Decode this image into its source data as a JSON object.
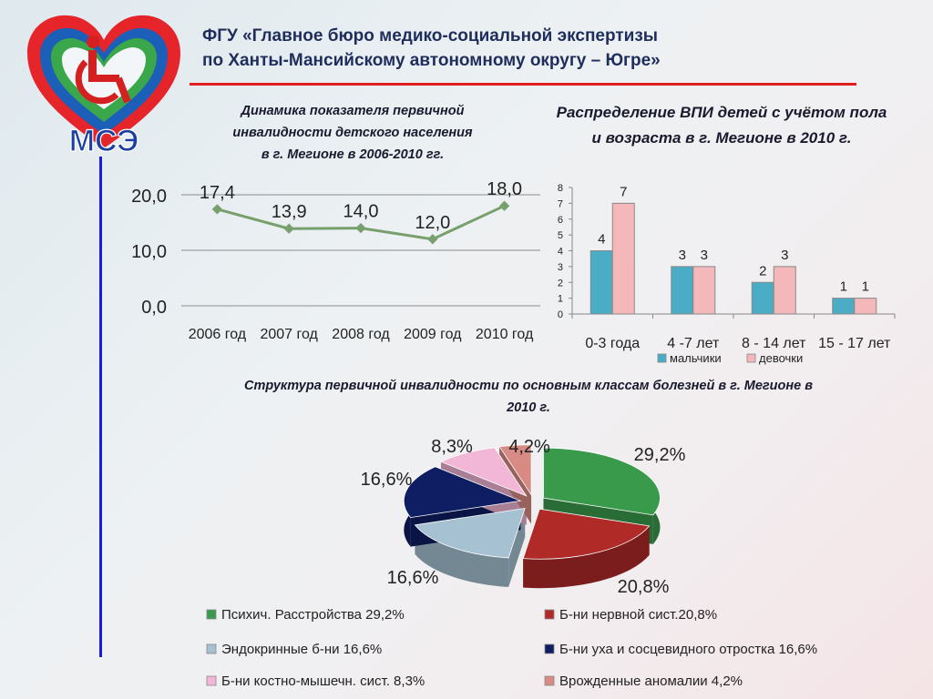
{
  "logo": {
    "text": "МСЭ"
  },
  "header": {
    "line1": "ФГУ «Главное бюро медико-социальной экспертизы",
    "line2": "по Ханты-Мансийскому автономному округу – Югре»"
  },
  "titles": {
    "line_chart": [
      "Динамика показателя первичной",
      "инвалидности детского населения",
      "в г. Мегионе в 2006-2010 гг."
    ],
    "bar_chart": [
      "Распределение ВПИ детей с учётом пола",
      "и возраста в г. Мегионе в 2010 г."
    ],
    "pie_chart": [
      "Структура первичной инвалидности по основным классам болезней в г. Мегионе в",
      "2010 г."
    ]
  },
  "chart_data": [
    {
      "type": "line",
      "categories": [
        "2006 год",
        "2007 год",
        "2008 год",
        "2009 год",
        "2010 год"
      ],
      "series": [
        {
          "values": [
            17.4,
            13.9,
            14.0,
            12.0,
            18.0
          ],
          "labels": [
            "17,4",
            "13,9",
            "14,0",
            "12,0",
            "18,0"
          ],
          "color": "#77a06c"
        }
      ],
      "ylim": [
        0,
        20
      ],
      "yticks": [
        0,
        10,
        20
      ],
      "ytick_labels": [
        "0,0",
        "10,0",
        "20,0"
      ],
      "grid": true
    },
    {
      "type": "bar",
      "categories": [
        "0-3 года",
        "4 -7 лет",
        "8 - 14 лет",
        "15 - 17 лет"
      ],
      "series": [
        {
          "name": "мальчики",
          "values": [
            4,
            3,
            2,
            1
          ],
          "color": "#4bacc6"
        },
        {
          "name": "девочки",
          "values": [
            7,
            3,
            3,
            1
          ],
          "color": "#f4b8bb"
        }
      ],
      "ylim": [
        0,
        8
      ],
      "yticks": [
        0,
        1,
        2,
        3,
        4,
        5,
        6,
        7,
        8
      ],
      "legend": "bottom"
    },
    {
      "type": "pie",
      "slices": [
        {
          "name": "Психич. Расстройства 29,2%",
          "value": 29.2,
          "label": "29,2%",
          "color": "#3a9a4c"
        },
        {
          "name": "Б-ни нервной сист.20,8%",
          "value": 20.8,
          "label": "20,8%",
          "color": "#b02a28"
        },
        {
          "name": "Эндокринные б-ни 16,6%",
          "value": 16.6,
          "label": "16,6%",
          "color": "#a6c2d2"
        },
        {
          "name": "Б-ни уха и сосцевидного отростка 16,6%",
          "value": 16.6,
          "label": "16,6%",
          "color": "#0f1e63"
        },
        {
          "name": "Б-ни костно-мышечн. сист. 8,3%",
          "value": 8.3,
          "label": "8,3%",
          "color": "#f2b6d6"
        },
        {
          "name": "Врожденные аномалии 4,2%",
          "value": 4.2,
          "label": "4,2%",
          "color": "#d88a84"
        }
      ],
      "legend": "bottom"
    }
  ]
}
